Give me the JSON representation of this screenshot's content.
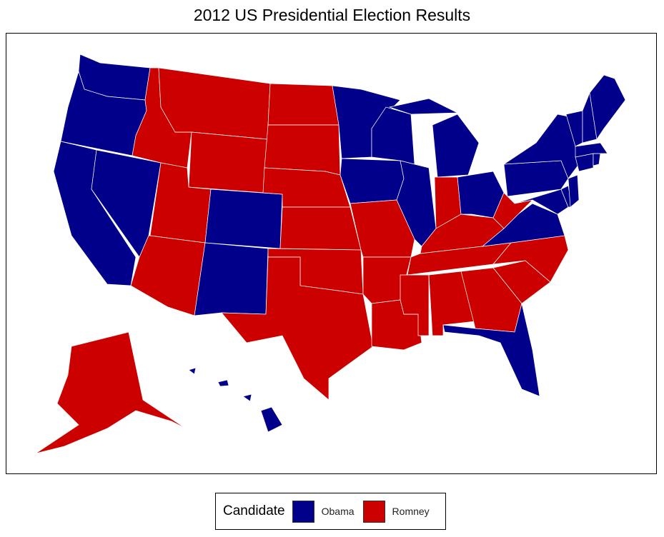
{
  "title": "2012 US Presidential Election Results",
  "legend": {
    "title": "Candidate",
    "items": [
      {
        "label": "Obama",
        "color": "#00008B"
      },
      {
        "label": "Romney",
        "color": "#CD0000"
      }
    ]
  },
  "map_data": {
    "results": {
      "WA": "Obama",
      "OR": "Obama",
      "CA": "Obama",
      "NV": "Obama",
      "ID": "Romney",
      "MT": "Romney",
      "WY": "Romney",
      "UT": "Romney",
      "CO": "Obama",
      "AZ": "Romney",
      "NM": "Obama",
      "ND": "Romney",
      "SD": "Romney",
      "NE": "Romney",
      "KS": "Romney",
      "OK": "Romney",
      "TX": "Romney",
      "MN": "Obama",
      "IA": "Obama",
      "MO": "Romney",
      "AR": "Romney",
      "LA": "Romney",
      "WI": "Obama",
      "IL": "Obama",
      "MI": "Obama",
      "IN": "Romney",
      "OH": "Obama",
      "KY": "Romney",
      "TN": "Romney",
      "MS": "Romney",
      "AL": "Romney",
      "GA": "Romney",
      "FL": "Obama",
      "SC": "Romney",
      "NC": "Romney",
      "VA": "Obama",
      "WV": "Romney",
      "PA": "Obama",
      "NY": "Obama",
      "MD": "Obama",
      "DE": "Obama",
      "NJ": "Obama",
      "CT": "Obama",
      "RI": "Obama",
      "MA": "Obama",
      "VT": "Obama",
      "NH": "Obama",
      "ME": "Obama",
      "AK": "Romney",
      "HI": "Obama"
    }
  }
}
